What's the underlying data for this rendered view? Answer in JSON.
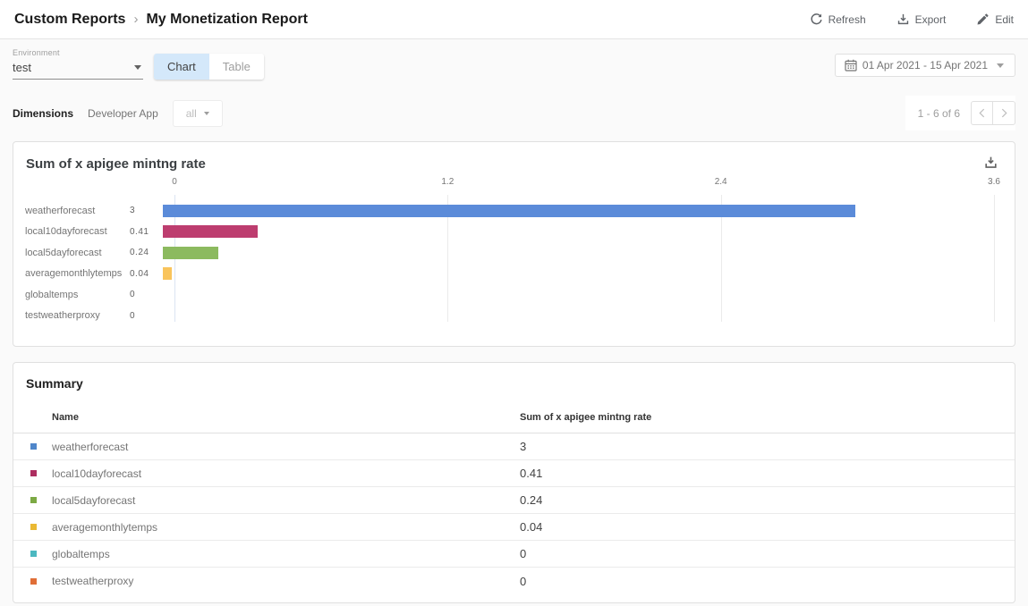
{
  "header": {
    "breadcrumb": {
      "parent": "Custom Reports",
      "separator": "›",
      "current": "My Monetization Report"
    },
    "actions": {
      "refresh": "Refresh",
      "export": "Export",
      "edit": "Edit"
    }
  },
  "controls": {
    "environment": {
      "label": "Environment",
      "value": "test"
    },
    "view_toggle": {
      "chart": "Chart",
      "table": "Table",
      "selected": "Chart"
    },
    "date_range": "01 Apr 2021 - 15 Apr 2021"
  },
  "dimensions": {
    "label": "Dimensions",
    "dimension_name": "Developer App",
    "filter_value": "all",
    "pagination": {
      "text": "1 - 6 of 6"
    }
  },
  "chart_card": {
    "title": "Sum of x apigee mintng rate"
  },
  "chart_data": {
    "type": "bar",
    "orientation": "horizontal",
    "title": "Sum of x apigee mintng rate",
    "categories": [
      "weatherforecast",
      "local10dayforecast",
      "local5dayforecast",
      "averagemonthlytemps",
      "globaltemps",
      "testweatherproxy"
    ],
    "values": [
      3,
      0.41,
      0.24,
      0.04,
      0,
      0
    ],
    "value_labels": [
      "3",
      "0.41",
      "0.24",
      "0.04",
      "0",
      "0"
    ],
    "xlim": [
      0,
      3.6
    ],
    "xticks": [
      "0",
      "1.2",
      "2.4",
      "3.6"
    ],
    "bar_colors": [
      "#5b8bd9",
      "#bd3d6f",
      "#8cba5f",
      "#f9c45c",
      "#4cb8c0",
      "#e06e37"
    ],
    "grid": true,
    "legend": false
  },
  "summary": {
    "title": "Summary",
    "columns": {
      "name": "Name",
      "value": "Sum of x apigee mintng rate"
    },
    "rows": [
      {
        "name": "weatherforecast",
        "value": "3",
        "marker_color": "#4f86ca"
      },
      {
        "name": "local10dayforecast",
        "value": "0.41",
        "marker_color": "#ad2e60"
      },
      {
        "name": "local5dayforecast",
        "value": "0.24",
        "marker_color": "#7ca944"
      },
      {
        "name": "averagemonthlytemps",
        "value": "0.04",
        "marker_color": "#eab933"
      },
      {
        "name": "globaltemps",
        "value": "0",
        "marker_color": "#4cb8c0"
      },
      {
        "name": "testweatherproxy",
        "value": "0",
        "marker_color": "#e06e37"
      }
    ]
  },
  "colors": {
    "toggle_active_bg": "#d4e8fa",
    "zero_gridline": "#dbe4f2",
    "gridline": "#ebebeb"
  }
}
